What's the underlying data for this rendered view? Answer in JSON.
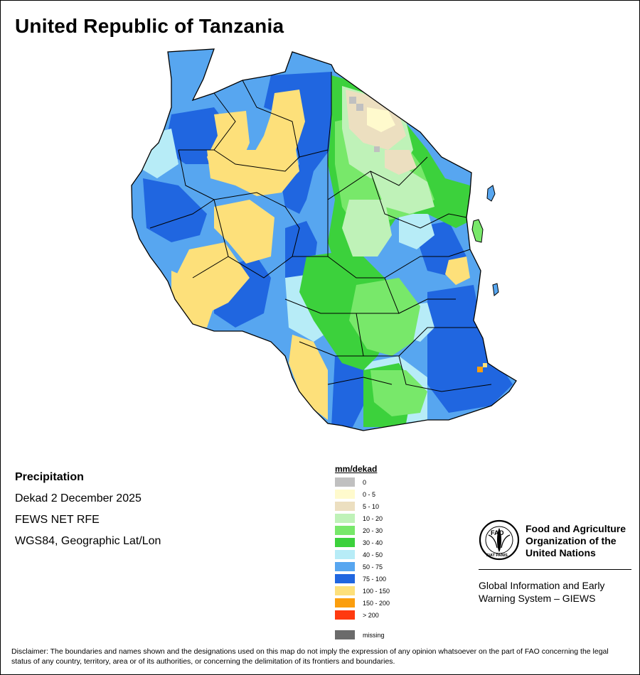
{
  "map": {
    "title": "United Republic of Tanzania",
    "variable": "Precipitation",
    "period": "Dekad 2 December 2025",
    "source": "FEWS NET RFE",
    "projection": "WGS84, Geographic Lat/Lon"
  },
  "legend": {
    "title": "mm/dekad",
    "classes": [
      {
        "label": "0",
        "color": "#c0c0c0"
      },
      {
        "label": "0 - 5",
        "color": "#fffacd"
      },
      {
        "label": "5 - 10",
        "color": "#ecdfc0"
      },
      {
        "label": "10 - 20",
        "color": "#bff2b8"
      },
      {
        "label": "20 - 30",
        "color": "#78e86a"
      },
      {
        "label": "30 - 40",
        "color": "#3cd13c"
      },
      {
        "label": "40 - 50",
        "color": "#b7ecf7"
      },
      {
        "label": "50 - 75",
        "color": "#57a6f0"
      },
      {
        "label": "75 - 100",
        "color": "#2066e0"
      },
      {
        "label": "100 - 150",
        "color": "#fde07a"
      },
      {
        "label": "150 - 200",
        "color": "#fb9e0e"
      },
      {
        "label": "> 200",
        "color": "#ff3a10"
      }
    ],
    "missing": {
      "label": "missing",
      "color": "#6b6b6b"
    }
  },
  "organization": {
    "name_lines": [
      "Food and Agriculture",
      "Organization of the",
      "United Nations"
    ],
    "logo_letters": "FAO",
    "motto": "FIAT PANIS",
    "system_lines": [
      "Global Information and Early",
      "Warning System – GIEWS"
    ]
  },
  "disclaimer": "Disclaimer: The boundaries and names shown and the designations used on this map do not imply the expression of any opinion whatsoever on the part of FAO concerning the legal status of any country, territory, area or of its authorities, or concerning the delimitation of its frontiers and boundaries."
}
